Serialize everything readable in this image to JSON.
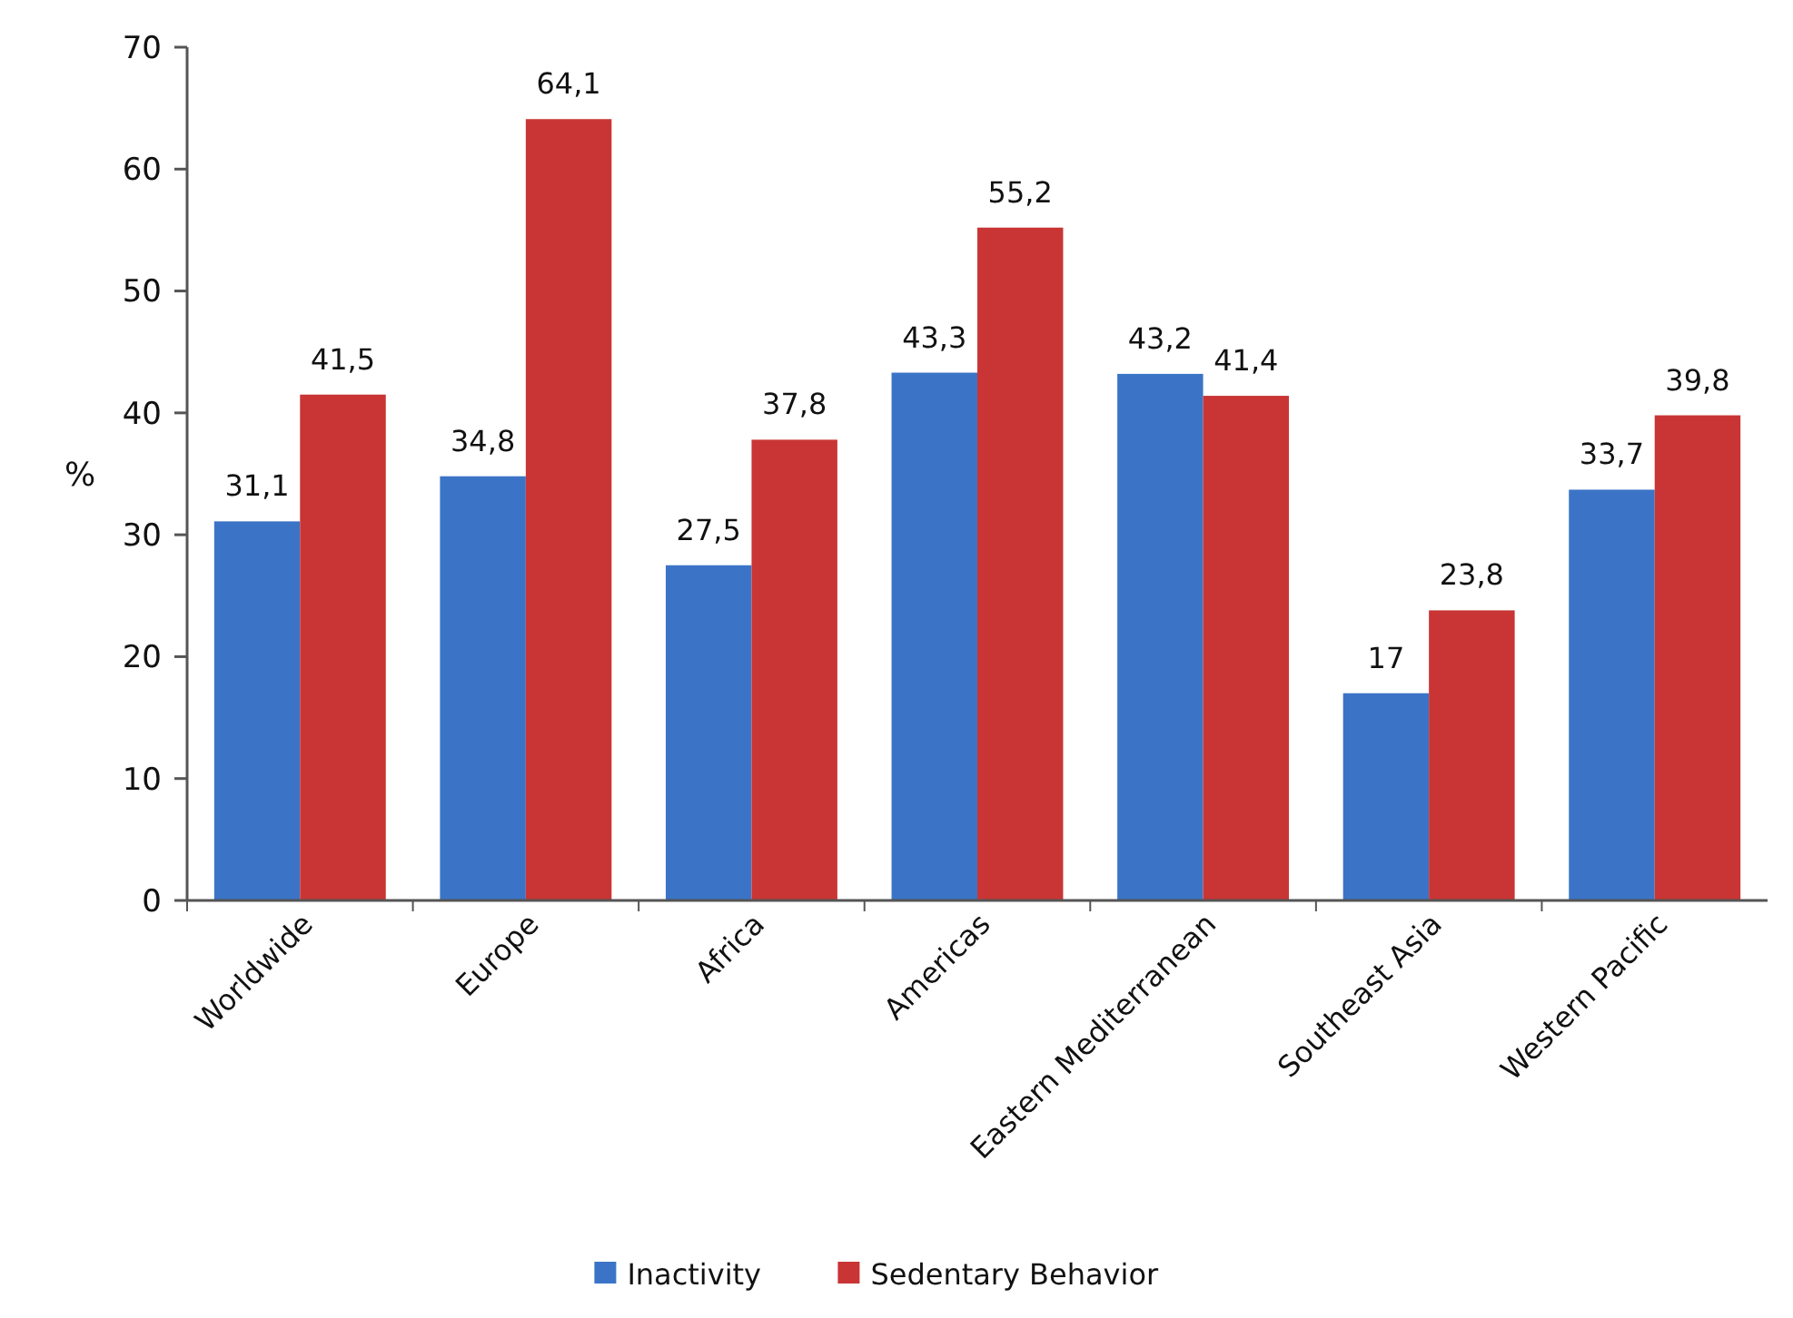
{
  "chart_data": {
    "type": "bar",
    "ylabel": "%",
    "categories": [
      "Worldwide",
      "Europe",
      "Africa",
      "Americas",
      "Eastern Mediterranean",
      "Southeast Asia",
      "Western Pacific"
    ],
    "series": [
      {
        "name": "Inactivity",
        "color": "#3b74c6",
        "values": [
          31.1,
          34.8,
          27.5,
          43.3,
          43.2,
          17,
          33.7
        ],
        "value_labels": [
          "31,1",
          "34,8",
          "27,5",
          "43,3",
          "43,2",
          "17",
          "33,7"
        ]
      },
      {
        "name": "Sedentary Behavior",
        "color": "#c93535",
        "values": [
          41.5,
          64.1,
          37.8,
          55.2,
          41.4,
          23.8,
          39.8
        ],
        "value_labels": [
          "41,5",
          "64,1",
          "37,8",
          "55,2",
          "41,4",
          "23,8",
          "39,8"
        ]
      }
    ],
    "ylim": [
      0,
      70
    ],
    "yticks": [
      0,
      10,
      20,
      30,
      40,
      50,
      60,
      70
    ],
    "grid": false,
    "legend": "bottom"
  }
}
